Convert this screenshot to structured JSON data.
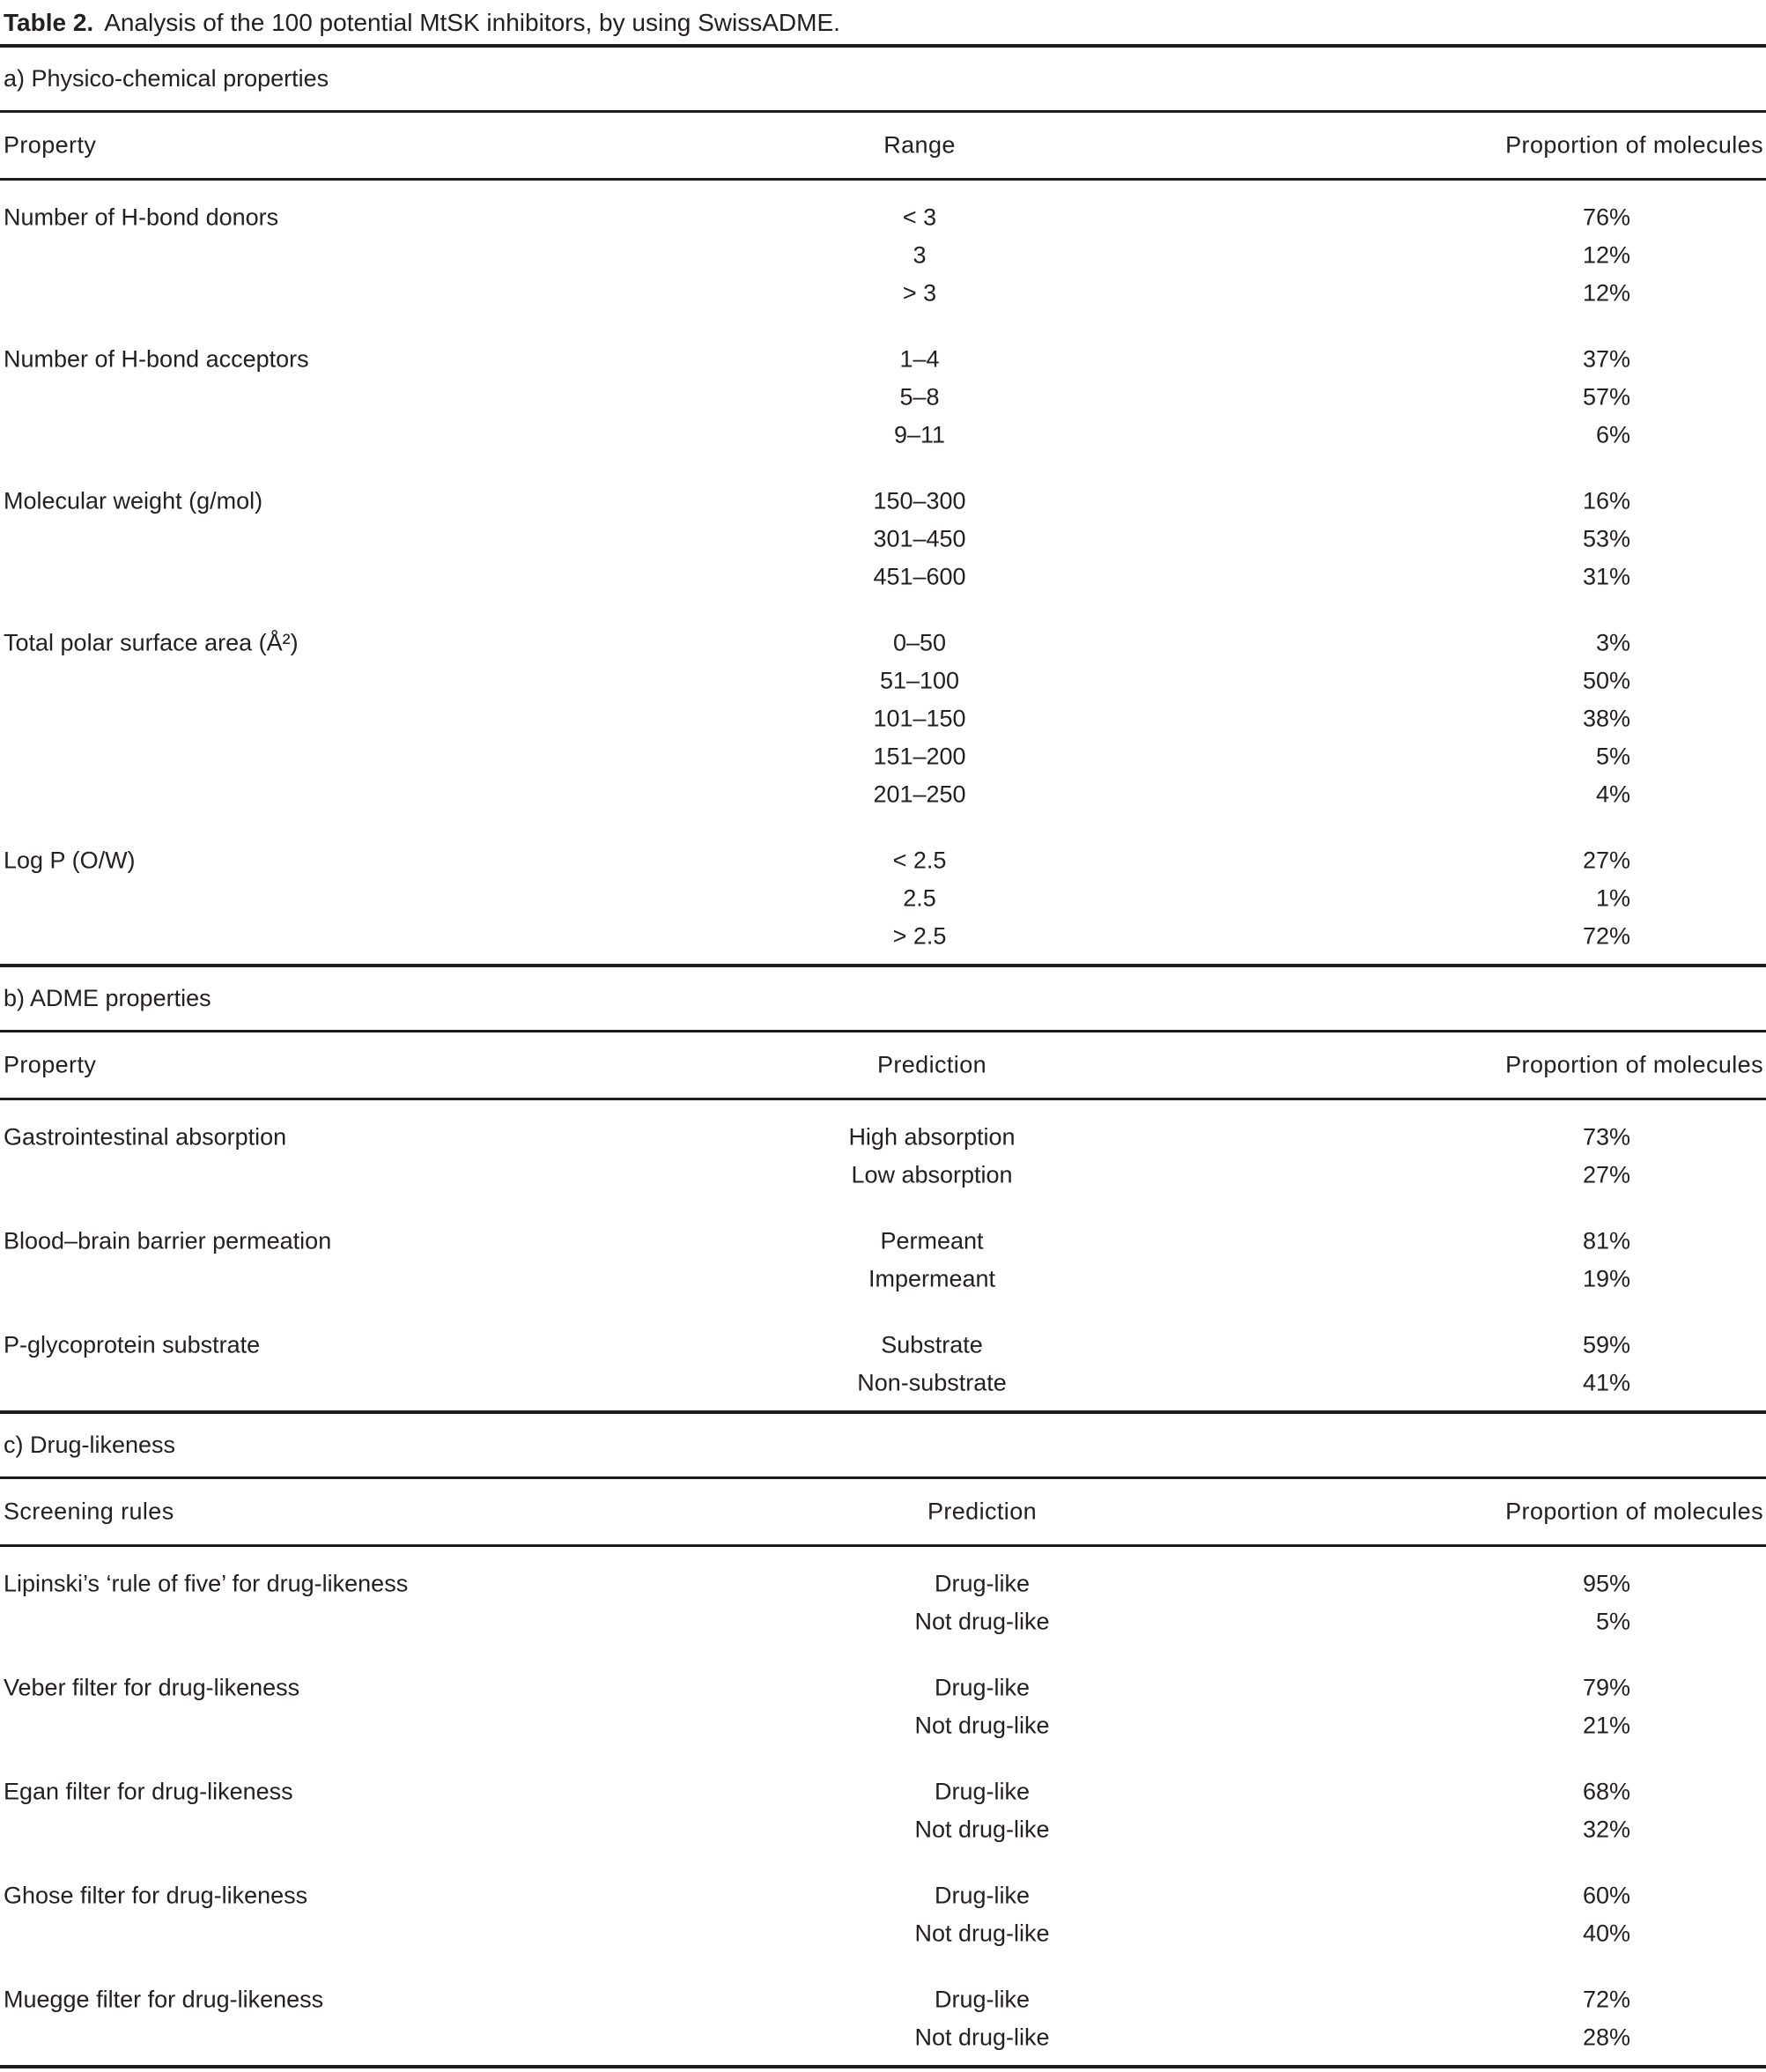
{
  "title": {
    "label": "Table 2.",
    "text": "Analysis of the 100 potential MtSK inhibitors, by using SwissADME."
  },
  "sections": [
    {
      "id": "a",
      "heading": "a) Physico-chemical properties",
      "columns": [
        "Property",
        "Range",
        "Proportion of molecules"
      ],
      "groups": [
        {
          "property": "Number of H-bond donors",
          "rows": [
            [
              "< 3",
              "76%"
            ],
            [
              "3",
              "12%"
            ],
            [
              "> 3",
              "12%"
            ]
          ]
        },
        {
          "property": "Number of H-bond acceptors",
          "rows": [
            [
              "1–4",
              "37%"
            ],
            [
              "5–8",
              "57%"
            ],
            [
              "9–11",
              "6%"
            ]
          ]
        },
        {
          "property": "Molecular weight (g/mol)",
          "rows": [
            [
              "150–300",
              "16%"
            ],
            [
              "301–450",
              "53%"
            ],
            [
              "451–600",
              "31%"
            ]
          ]
        },
        {
          "property": "Total polar surface area (Å²)",
          "rows": [
            [
              "0–50",
              "3%"
            ],
            [
              "51–100",
              "50%"
            ],
            [
              "101–150",
              "38%"
            ],
            [
              "151–200",
              "5%"
            ],
            [
              "201–250",
              "4%"
            ]
          ]
        },
        {
          "property": "Log P (O/W)",
          "rows": [
            [
              "< 2.5",
              "27%"
            ],
            [
              "2.5",
              "1%"
            ],
            [
              "> 2.5",
              "72%"
            ]
          ]
        }
      ]
    },
    {
      "id": "b",
      "heading": "b) ADME properties",
      "columns": [
        "Property",
        "Prediction",
        "Proportion of molecules"
      ],
      "groups": [
        {
          "property": "Gastrointestinal absorption",
          "rows": [
            [
              "High absorption",
              "73%"
            ],
            [
              "Low absorption",
              "27%"
            ]
          ]
        },
        {
          "property": "Blood–brain barrier permeation",
          "rows": [
            [
              "Permeant",
              "81%"
            ],
            [
              "Impermeant",
              "19%"
            ]
          ]
        },
        {
          "property": "P-glycoprotein substrate",
          "rows": [
            [
              "Substrate",
              "59%"
            ],
            [
              "Non-substrate",
              "41%"
            ]
          ]
        }
      ]
    },
    {
      "id": "c",
      "heading": "c) Drug-likeness",
      "columns": [
        "Screening rules",
        "Prediction",
        "Proportion of molecules"
      ],
      "groups": [
        {
          "property": "Lipinski’s ‘rule of five’ for drug-likeness",
          "rows": [
            [
              "Drug-like",
              "95%"
            ],
            [
              "Not drug-like",
              "5%"
            ]
          ]
        },
        {
          "property": "Veber filter for drug-likeness",
          "rows": [
            [
              "Drug-like",
              "79%"
            ],
            [
              "Not drug-like",
              "21%"
            ]
          ]
        },
        {
          "property": "Egan filter for drug-likeness",
          "rows": [
            [
              "Drug-like",
              "68%"
            ],
            [
              "Not drug-like",
              "32%"
            ]
          ]
        },
        {
          "property": "Ghose filter for drug-likeness",
          "rows": [
            [
              "Drug-like",
              "60%"
            ],
            [
              "Not drug-like",
              "40%"
            ]
          ]
        },
        {
          "property": "Muegge filter for drug-likeness",
          "rows": [
            [
              "Drug-like",
              "72%"
            ],
            [
              "Not drug-like",
              "28%"
            ]
          ]
        }
      ]
    }
  ]
}
